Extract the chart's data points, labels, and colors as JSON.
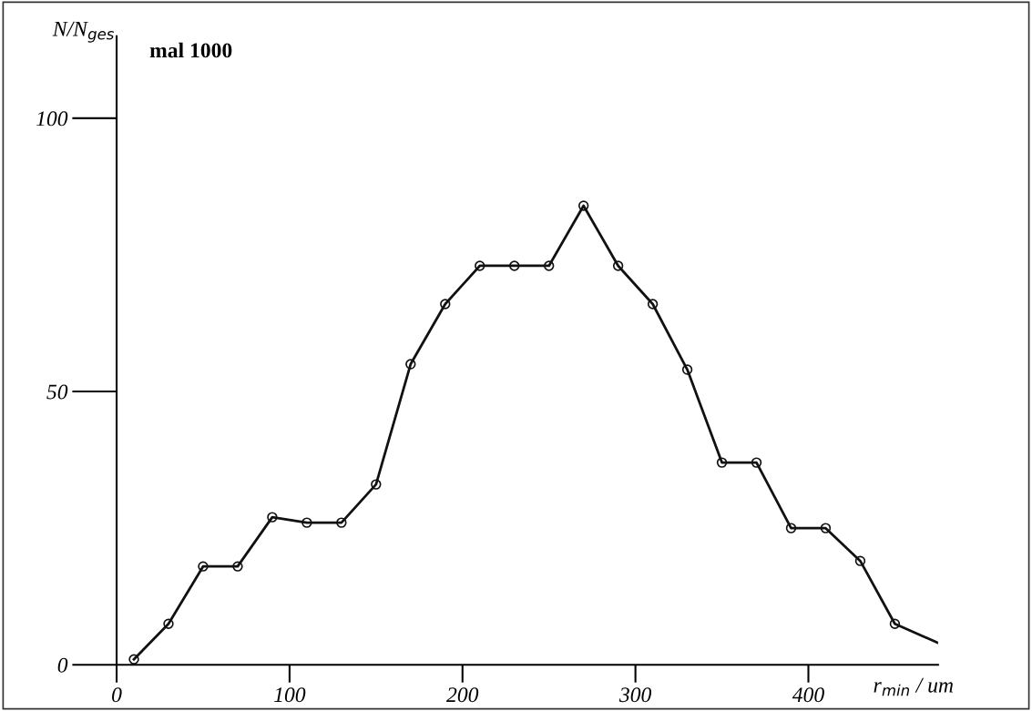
{
  "chart_data": {
    "type": "line",
    "xlabel": "r$_{min}$ / um",
    "ylabel": "N/N$_{ges}$",
    "annotations": [
      "mal 1000"
    ],
    "x": [
      10,
      30,
      50,
      70,
      90,
      110,
      130,
      150,
      170,
      190,
      210,
      230,
      250,
      270,
      290,
      310,
      330,
      350,
      370,
      390,
      410,
      430,
      450,
      475
    ],
    "values": [
      1,
      7.5,
      18,
      18,
      27,
      26,
      26,
      33,
      55,
      66,
      73,
      73,
      73,
      84,
      73,
      66,
      54,
      37,
      37,
      25,
      25,
      19,
      7.5,
      4
    ],
    "color": "#111111",
    "marker": "circle",
    "line_style": "solid",
    "grid": false,
    "xlim": [
      0,
      475
    ],
    "ylim": [
      0,
      115
    ],
    "xticks": [
      0,
      100,
      200,
      300,
      400
    ],
    "yticks": [
      0,
      50,
      100
    ]
  }
}
